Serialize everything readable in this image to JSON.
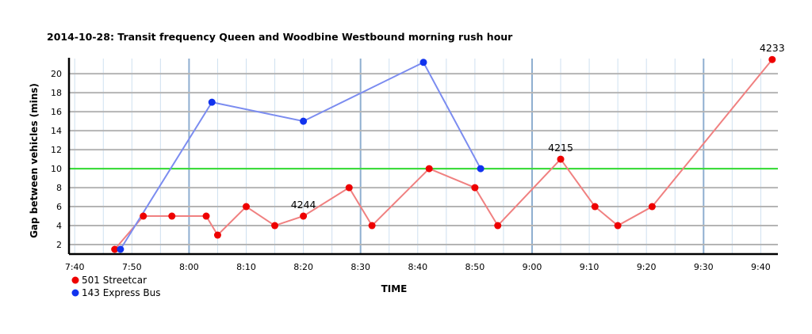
{
  "chart_data": {
    "type": "line",
    "title": "2014-10-28:  Transit frequency Queen and Woodbine Westbound morning rush hour",
    "xlabel": "TIME",
    "ylabel": "Gap between vehicles (mins)",
    "x_ticks": [
      "7:40",
      "7:50",
      "8:00",
      "8:10",
      "8:20",
      "8:30",
      "8:40",
      "8:50",
      "9:00",
      "9:10",
      "9:20",
      "9:30",
      "9:40"
    ],
    "y_ticks": [
      2,
      4,
      6,
      8,
      10,
      12,
      14,
      16,
      18,
      20
    ],
    "xlim": [
      "7:39",
      "9:43"
    ],
    "ylim": [
      1,
      21.6
    ],
    "grid": true,
    "legend_position": "bottom-left",
    "reference_line": {
      "y": 10,
      "color": "#33dd33"
    },
    "series": [
      {
        "name": "501 Streetcar",
        "color": "#ee0000",
        "line_color": "#f08080",
        "points": [
          {
            "x": "7:47",
            "y": 1.5
          },
          {
            "x": "7:52",
            "y": 5
          },
          {
            "x": "7:57",
            "y": 5
          },
          {
            "x": "8:03",
            "y": 5
          },
          {
            "x": "8:05",
            "y": 3
          },
          {
            "x": "8:10",
            "y": 6
          },
          {
            "x": "8:15",
            "y": 4
          },
          {
            "x": "8:20",
            "y": 5,
            "label": "4244"
          },
          {
            "x": "8:28",
            "y": 8
          },
          {
            "x": "8:32",
            "y": 4
          },
          {
            "x": "8:42",
            "y": 10
          },
          {
            "x": "8:50",
            "y": 8
          },
          {
            "x": "8:54",
            "y": 4
          },
          {
            "x": "9:05",
            "y": 11,
            "label": "4215"
          },
          {
            "x": "9:11",
            "y": 6
          },
          {
            "x": "9:15",
            "y": 4
          },
          {
            "x": "9:21",
            "y": 6
          },
          {
            "x": "9:42",
            "y": 21.5,
            "label": "4233"
          }
        ]
      },
      {
        "name": "143 Express Bus",
        "color": "#1133ee",
        "line_color": "#7b8cf0",
        "points": [
          {
            "x": "7:48",
            "y": 1.5
          },
          {
            "x": "8:04",
            "y": 17
          },
          {
            "x": "8:20",
            "y": 15
          },
          {
            "x": "8:41",
            "y": 21.2
          },
          {
            "x": "8:51",
            "y": 10
          }
        ]
      }
    ]
  }
}
